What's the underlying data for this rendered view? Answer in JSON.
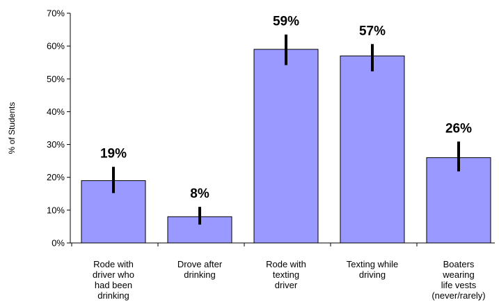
{
  "chart_data": {
    "type": "bar",
    "title": "",
    "xlabel": "",
    "ylabel": "% of Students",
    "ylim": [
      0,
      70
    ],
    "yticks": [
      "0%",
      "10%",
      "20%",
      "30%",
      "40%",
      "50%",
      "60%",
      "70%"
    ],
    "categories": [
      [
        "Rode with",
        "driver who",
        "had been",
        "drinking"
      ],
      [
        "Drove after",
        "drinking"
      ],
      [
        "Rode with",
        "texting",
        "driver"
      ],
      [
        "Texting while",
        "driving"
      ],
      [
        "Boaters",
        "wearing",
        "life vests",
        "(never/rarely)"
      ]
    ],
    "values": [
      19,
      8,
      59,
      57,
      26
    ],
    "value_labels": [
      "19%",
      "8%",
      "59%",
      "57%",
      "26%"
    ],
    "error_low": [
      15.2,
      5.6,
      54.2,
      52.3,
      21.8
    ],
    "error_high": [
      23.2,
      11.0,
      63.5,
      60.6,
      30.9
    ],
    "bar_color": "#9999ff",
    "error_bar_color": "#000000",
    "grid": false,
    "legend": "none"
  }
}
